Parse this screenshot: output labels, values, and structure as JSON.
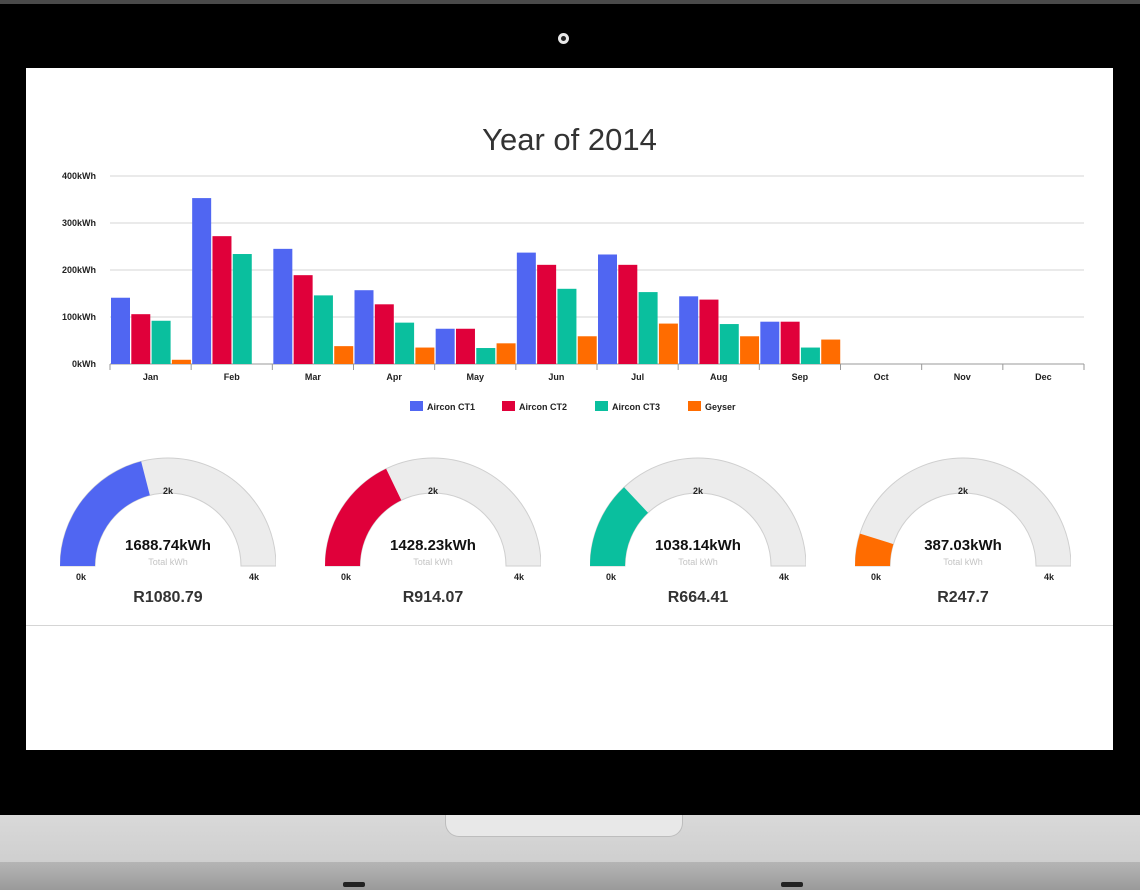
{
  "chart_data": {
    "type": "bar",
    "title": "Year of 2014",
    "categories": [
      "Jan",
      "Feb",
      "Mar",
      "Apr",
      "May",
      "Jun",
      "Jul",
      "Aug",
      "Sep",
      "Oct",
      "Nov",
      "Dec"
    ],
    "y_ticks": [
      "0kWh",
      "100kWh",
      "200kWh",
      "300kWh",
      "400kWh"
    ],
    "ylim": [
      0,
      400
    ],
    "grid": true,
    "legend_position": "bottom",
    "series": [
      {
        "name": "Aircon CT1",
        "color": "#5066f2",
        "values": [
          141,
          353,
          245,
          157,
          75,
          237,
          233,
          144,
          90,
          0,
          0,
          0
        ]
      },
      {
        "name": "Aircon CT2",
        "color": "#e0003a",
        "values": [
          106,
          272,
          189,
          127,
          75,
          211,
          211,
          137,
          90,
          0,
          0,
          0
        ]
      },
      {
        "name": "Aircon CT3",
        "color": "#0abf9e",
        "values": [
          92,
          234,
          146,
          88,
          34,
          160,
          153,
          85,
          35,
          0,
          0,
          0
        ]
      },
      {
        "name": "Geyser",
        "color": "#ff6c00",
        "values": [
          9,
          0,
          38,
          35,
          44,
          59,
          86,
          59,
          52,
          0,
          0,
          0
        ]
      }
    ]
  },
  "gauges": [
    {
      "value_label": "1688.74kWh",
      "sub_label": "Total kWh",
      "min_label": "0k",
      "mid_label": "2k",
      "max_label": "4k",
      "cost": "R1080.79",
      "fraction": 0.42,
      "color": "#5066f2"
    },
    {
      "value_label": "1428.23kWh",
      "sub_label": "Total kWh",
      "min_label": "0k",
      "mid_label": "2k",
      "max_label": "4k",
      "cost": "R914.07",
      "fraction": 0.357,
      "color": "#e0003a"
    },
    {
      "value_label": "1038.14kWh",
      "sub_label": "Total kWh",
      "min_label": "0k",
      "mid_label": "2k",
      "max_label": "4k",
      "cost": "R664.41",
      "fraction": 0.26,
      "color": "#0abf9e"
    },
    {
      "value_label": "387.03kWh",
      "sub_label": "Total kWh",
      "min_label": "0k",
      "mid_label": "2k",
      "max_label": "4k",
      "cost": "R247.7",
      "fraction": 0.097,
      "color": "#ff6c00"
    }
  ]
}
